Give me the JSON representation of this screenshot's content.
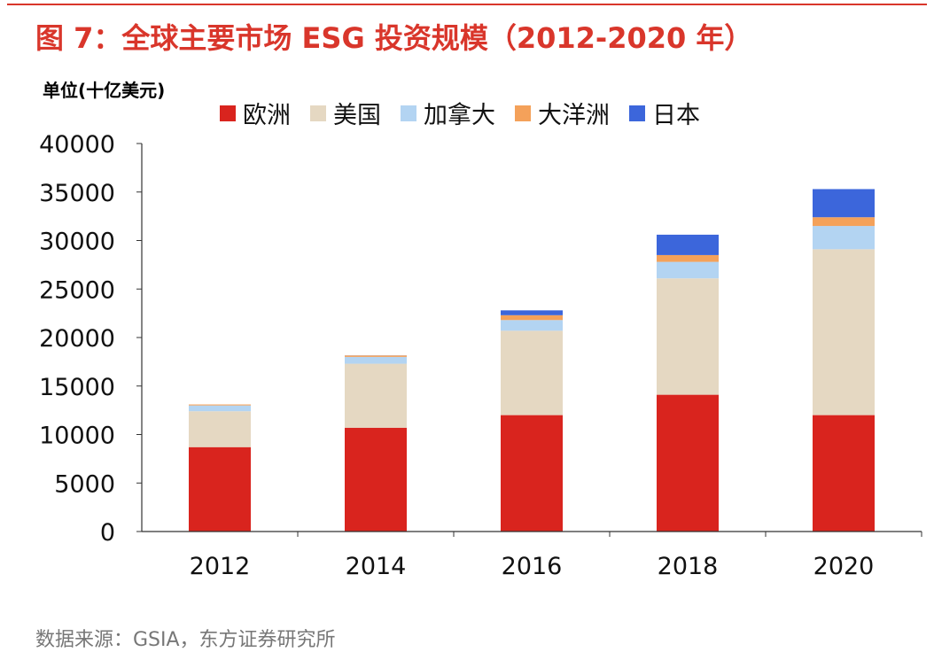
{
  "title": "图 7：全球主要市场 ESG 投资规模（2012-2020 年）",
  "source": "数据来源：GSIA，东方证券研究所",
  "unit": "单位(十亿美元)",
  "colors": {
    "title": "#d9362b",
    "欧洲": "#d9241e",
    "美国": "#e5d8c2",
    "加拿大": "#b3d4f2",
    "大洋洲": "#f4a15a",
    "日本": "#3c66db"
  },
  "chart_data": {
    "type": "bar",
    "stacked": true,
    "title": "图 7：全球主要市场 ESG 投资规模（2012-2020 年）",
    "ylabel": "单位(十亿美元)",
    "xlabel": "",
    "ylim": [
      0,
      40000
    ],
    "yticks": [
      0,
      5000,
      10000,
      15000,
      20000,
      25000,
      30000,
      35000,
      40000
    ],
    "legend_position": "top",
    "grid": false,
    "categories": [
      "2012",
      "2014",
      "2016",
      "2018",
      "2020"
    ],
    "series": [
      {
        "name": "欧洲",
        "color": "#d9241e",
        "values": [
          8700,
          10700,
          12000,
          14100,
          12000
        ]
      },
      {
        "name": "美国",
        "color": "#e5d8c2",
        "values": [
          3700,
          6600,
          8700,
          12000,
          17100
        ]
      },
      {
        "name": "加拿大",
        "color": "#b3d4f2",
        "values": [
          600,
          700,
          1100,
          1700,
          2400
        ]
      },
      {
        "name": "大洋洲",
        "color": "#f4a15a",
        "values": [
          100,
          150,
          500,
          700,
          900
        ]
      },
      {
        "name": "日本",
        "color": "#3c66db",
        "values": [
          0,
          10,
          500,
          2100,
          2900
        ]
      }
    ]
  }
}
